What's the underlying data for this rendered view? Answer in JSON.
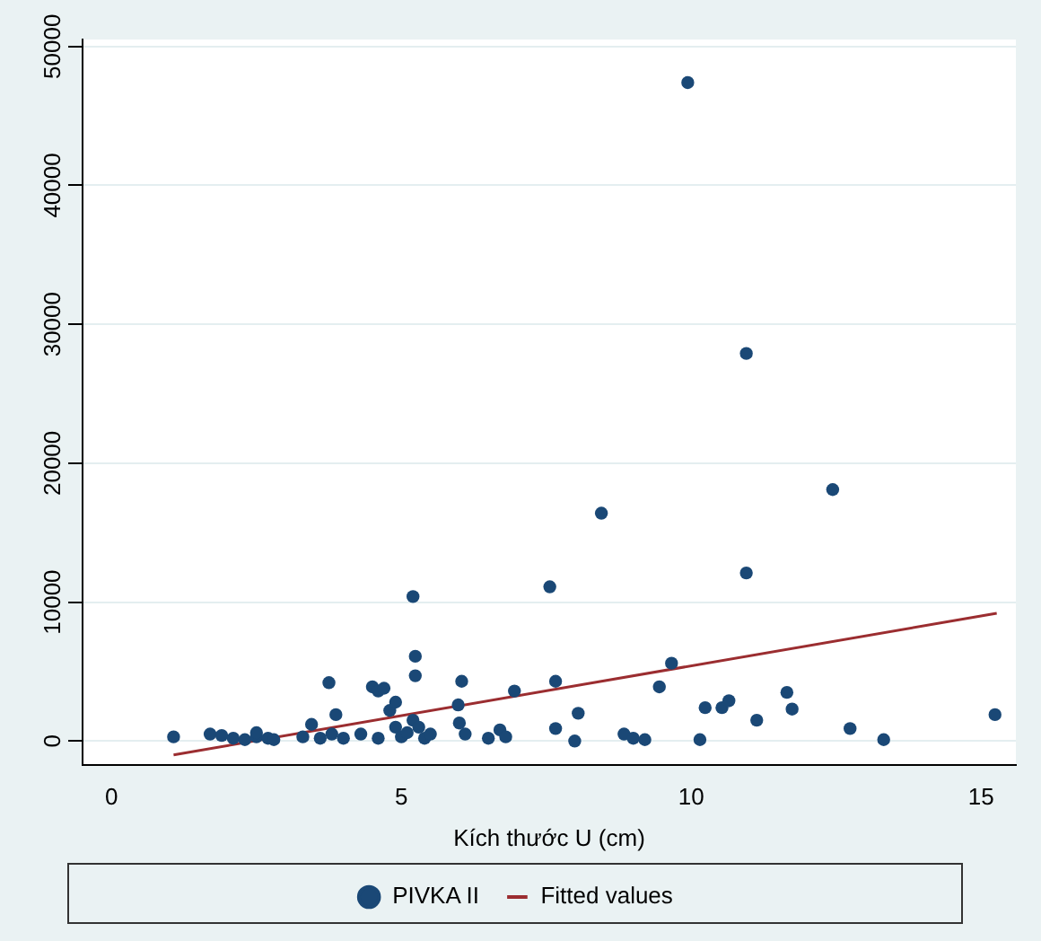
{
  "chart_data": {
    "type": "scatter",
    "xlabel": "Kích thước U (cm)",
    "xlim": [
      -0.5,
      15.6
    ],
    "xticks": [
      0,
      5,
      10,
      15
    ],
    "ylim": [
      -1700,
      50500
    ],
    "yticks": [
      0,
      10000,
      20000,
      30000,
      40000,
      50000
    ],
    "grid": "y",
    "legend": "bottom",
    "marker": "circle",
    "series": [
      {
        "name": "PIVKA II",
        "color": "#1a4876",
        "x": [
          1.07,
          1.7,
          1.9,
          2.1,
          2.3,
          2.5,
          2.5,
          2.7,
          2.8,
          3.3,
          3.45,
          3.6,
          3.75,
          3.8,
          3.87,
          4.0,
          4.3,
          4.5,
          4.6,
          4.7,
          4.6,
          4.8,
          4.9,
          4.9,
          5.0,
          5.1,
          5.2,
          5.2,
          5.24,
          5.24,
          5.3,
          5.4,
          5.5,
          5.98,
          6.04,
          6.0,
          6.1,
          6.5,
          6.7,
          6.8,
          6.95,
          7.56,
          7.66,
          7.66,
          7.99,
          8.05,
          8.45,
          8.84,
          9.0,
          9.2,
          9.45,
          9.66,
          9.94,
          10.15,
          10.24,
          10.53,
          10.65,
          10.95,
          10.95,
          11.13,
          11.65,
          11.74,
          12.44,
          12.74,
          13.32,
          15.24
        ],
        "values": [
          300,
          500,
          400,
          200,
          100,
          300,
          600,
          200,
          100,
          300,
          1200,
          200,
          4200,
          500,
          1900,
          200,
          500,
          3900,
          3600,
          3800,
          200,
          2200,
          2800,
          1000,
          300,
          600,
          1500,
          10400,
          6100,
          4700,
          1000,
          200,
          500,
          2600,
          4300,
          1300,
          500,
          200,
          800,
          300,
          3600,
          11100,
          4300,
          900,
          0,
          2000,
          16400,
          500,
          200,
          100,
          3900,
          5600,
          47400,
          100,
          2400,
          2400,
          2900,
          27900,
          12100,
          1500,
          3500,
          2300,
          18100,
          900,
          100,
          1900
        ]
      },
      {
        "name": "Fitted values",
        "type": "line",
        "color": "#9b2d30",
        "marker": "none",
        "x": [
          1.07,
          15.27
        ],
        "values": [
          -1000,
          9200
        ]
      }
    ]
  }
}
